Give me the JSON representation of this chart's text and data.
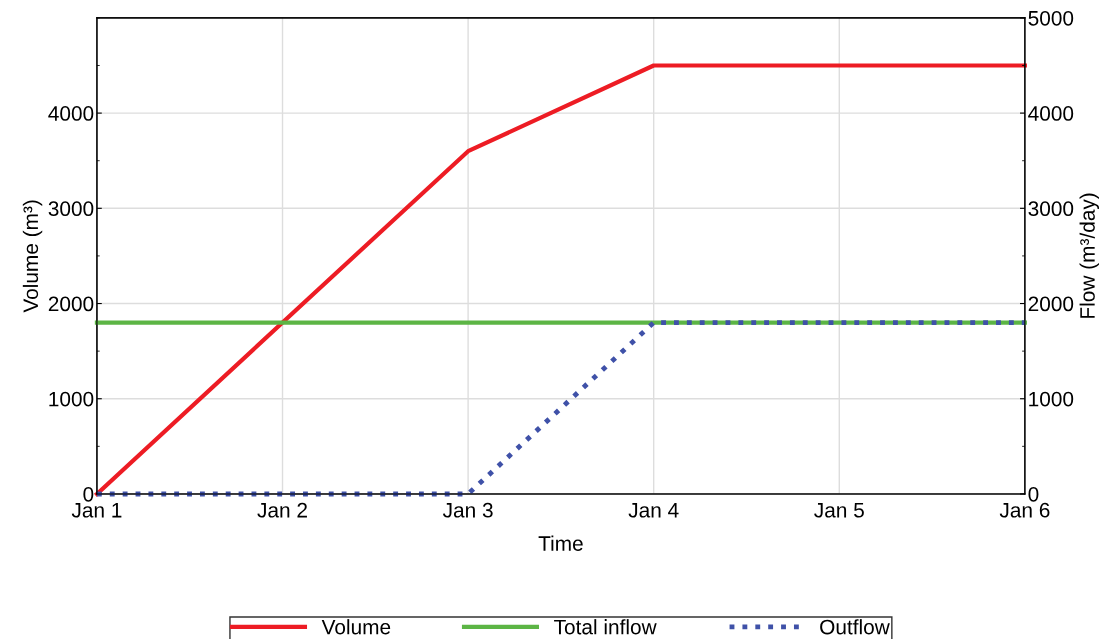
{
  "chart_data": {
    "type": "line",
    "xlabel": "Time",
    "ylabel": "Volume (m³)",
    "y2label": "Flow (m³/day)",
    "x": [
      "--01-01",
      "--01-03",
      "--01-04",
      "--01-06"
    ],
    "series": [
      {
        "name": "Volume",
        "color": "#ed1c24",
        "values": [
          0,
          3600,
          4500,
          4500
        ],
        "line_style": "solid"
      },
      {
        "name": "Total inflow",
        "color": "#5cb545",
        "axis": "y2",
        "values": [
          1800,
          1800,
          1800,
          1800
        ],
        "line_style": "solid"
      },
      {
        "name": "Outflow",
        "color": "#3f51a8",
        "axis": "y2",
        "values": [
          0,
          0,
          1800,
          1800
        ],
        "line_style": "dotted"
      }
    ],
    "xlim": [
      "--01-01",
      "--01-06"
    ],
    "xticks": [
      {
        "value": "--01-01",
        "label": "Jan 1"
      },
      {
        "value": "--01-02",
        "label": "Jan 2"
      },
      {
        "value": "--01-03",
        "label": "Jan 3"
      },
      {
        "value": "--01-04",
        "label": "Jan 4"
      },
      {
        "value": "--01-05",
        "label": "Jan 5"
      },
      {
        "value": "--01-06",
        "label": "Jan 6"
      }
    ],
    "ylim": [
      0,
      5000
    ],
    "yticks": [
      0,
      1000,
      2000,
      3000,
      4000
    ],
    "y2lim": [
      0,
      5000
    ],
    "y2ticks": [
      0,
      1000,
      2000,
      3000,
      4000,
      5000
    ],
    "grid": true,
    "legend": "bottom",
    "marker": "none"
  }
}
